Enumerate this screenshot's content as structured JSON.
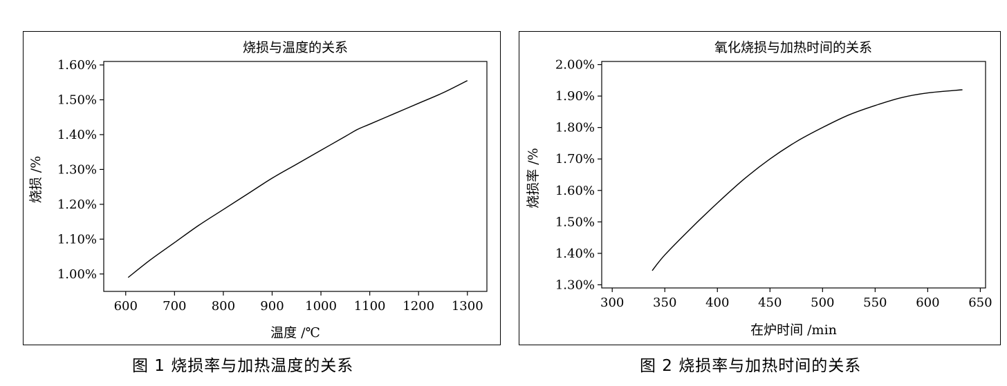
{
  "chart_data": [
    {
      "type": "line",
      "title": "烧损与温度的关系",
      "xlabel": "温度 /℃",
      "ylabel": "烧损 /%",
      "xlim": [
        555,
        1340
      ],
      "ylim": [
        0.95,
        1.61
      ],
      "x_ticks": [
        600,
        700,
        800,
        900,
        1000,
        1100,
        1200,
        1300
      ],
      "x_tick_labels": [
        "600",
        "700",
        "800",
        "900",
        "1000",
        "1100",
        "1200",
        "1300"
      ],
      "y_ticks": [
        1.0,
        1.1,
        1.2,
        1.3,
        1.4,
        1.5,
        1.6
      ],
      "y_tick_labels": [
        "1.00%",
        "1.10%",
        "1.20%",
        "1.30%",
        "1.40%",
        "1.50%",
        "1.60%"
      ],
      "grid": false,
      "series": [
        {
          "x": [
            605,
            650,
            700,
            750,
            800,
            850,
            900,
            950,
            1000,
            1050,
            1075,
            1100,
            1150,
            1200,
            1250,
            1300
          ],
          "y": [
            0.99,
            1.04,
            1.09,
            1.14,
            1.185,
            1.23,
            1.275,
            1.315,
            1.355,
            1.395,
            1.415,
            1.43,
            1.46,
            1.49,
            1.52,
            1.555
          ]
        }
      ]
    },
    {
      "type": "line",
      "title": "氧化烧损与加热时间的关系",
      "xlabel": "在炉时间 /min",
      "ylabel": "烧损率 /%",
      "xlim": [
        290,
        655
      ],
      "ylim": [
        1.29,
        2.01
      ],
      "x_ticks": [
        300,
        350,
        400,
        450,
        500,
        550,
        600,
        650
      ],
      "x_tick_labels": [
        "300",
        "350",
        "400",
        "450",
        "500",
        "550",
        "600",
        "650"
      ],
      "y_ticks": [
        1.3,
        1.4,
        1.5,
        1.6,
        1.7,
        1.8,
        1.9,
        2.0
      ],
      "y_tick_labels": [
        "1.30%",
        "1.40%",
        "1.50%",
        "1.60%",
        "1.70%",
        "1.80%",
        "1.90%",
        "2.00%"
      ],
      "grid": false,
      "series": [
        {
          "x": [
            338,
            350,
            375,
            400,
            425,
            450,
            475,
            500,
            525,
            550,
            575,
            600,
            633
          ],
          "y": [
            1.345,
            1.395,
            1.48,
            1.56,
            1.635,
            1.7,
            1.755,
            1.8,
            1.84,
            1.87,
            1.895,
            1.91,
            1.92
          ]
        }
      ]
    }
  ],
  "captions": [
    "图 1  烧损率与加热温度的关系",
    "图 2  烧损率与加热时间的关系"
  ]
}
